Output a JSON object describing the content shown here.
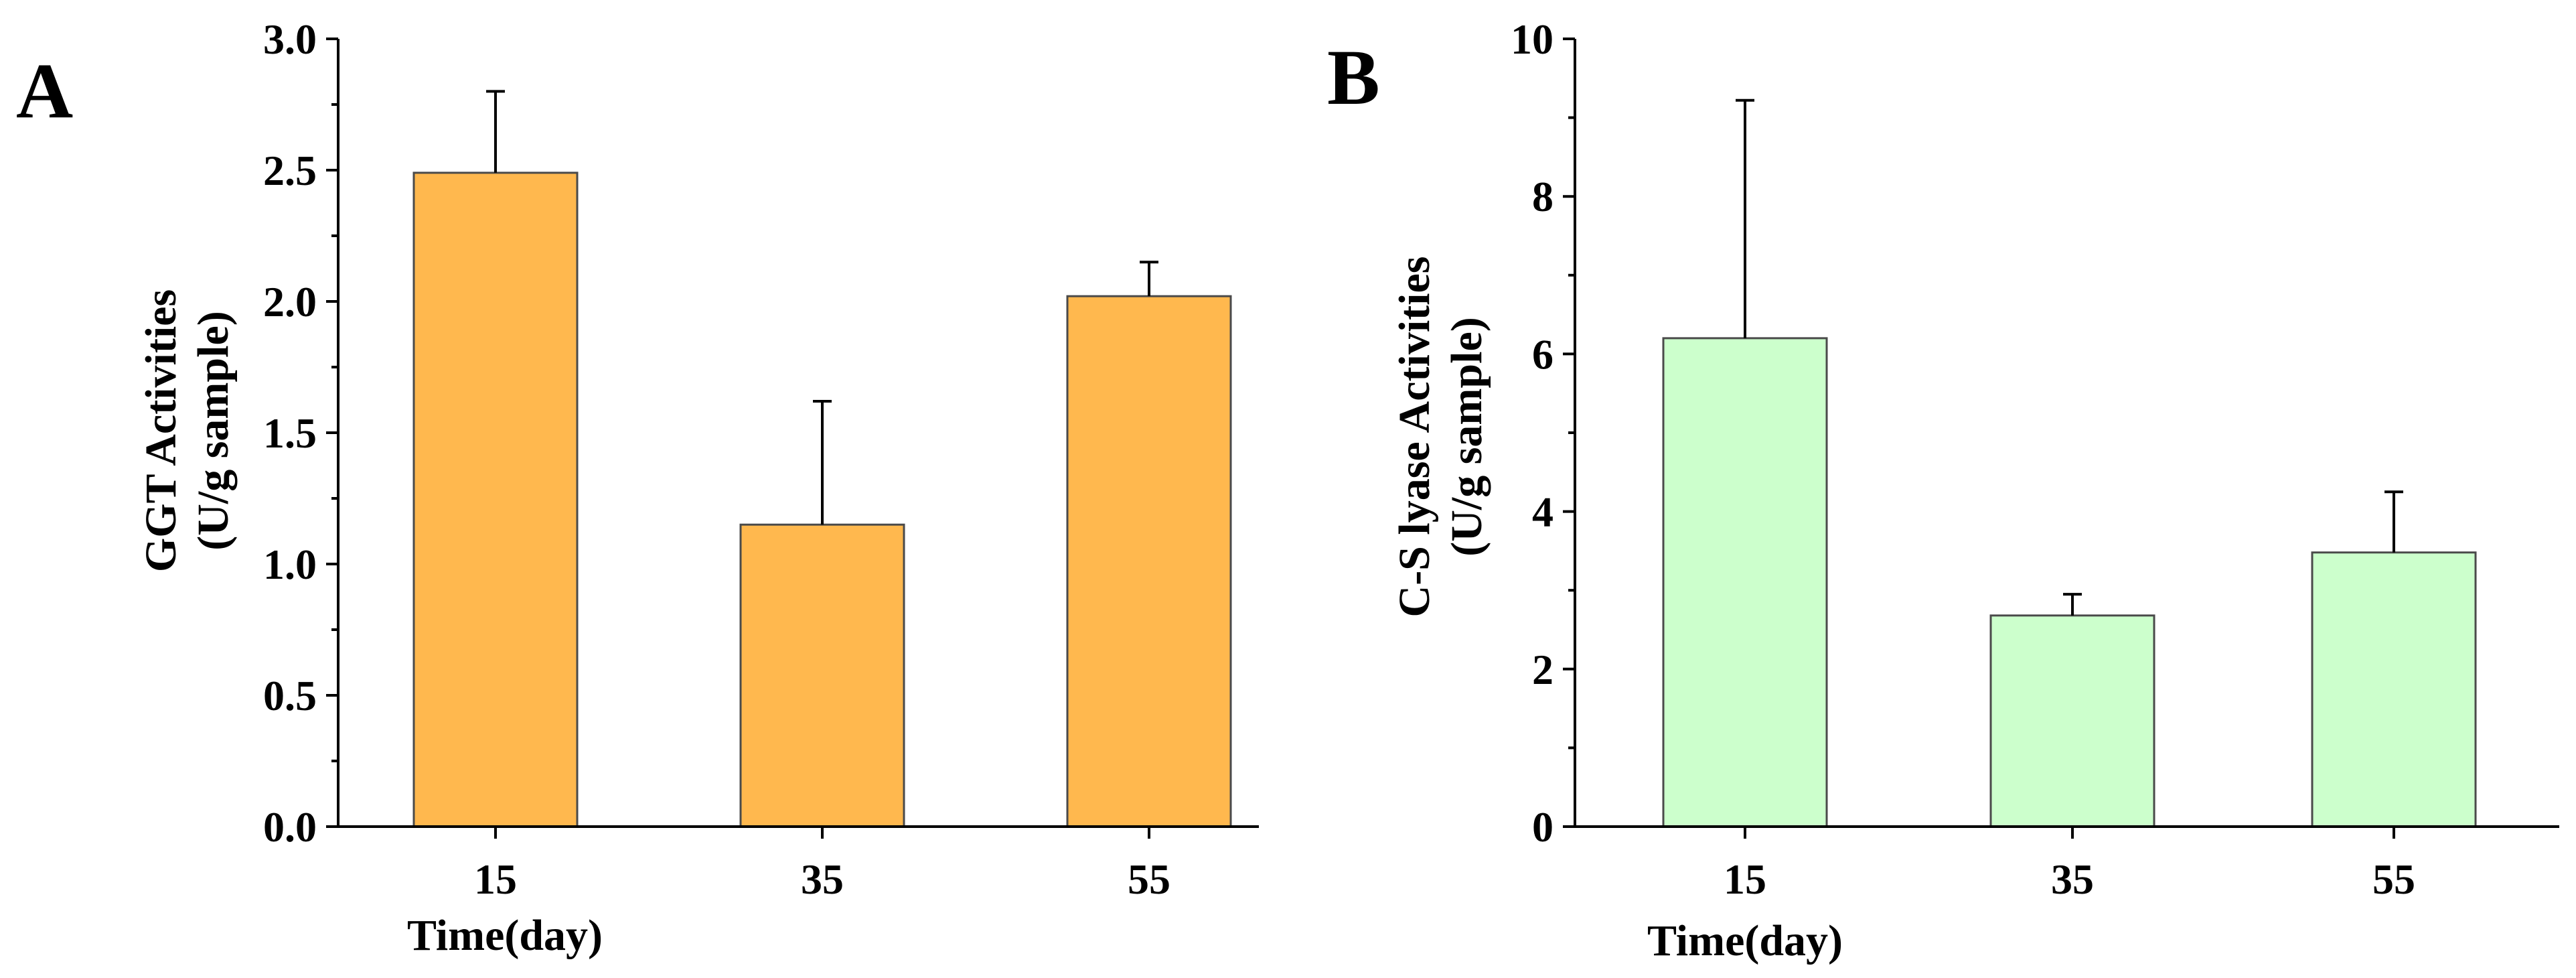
{
  "chart_data": [
    {
      "panel_label": "A",
      "type": "bar",
      "categories": [
        "15",
        "35",
        "55"
      ],
      "values": [
        2.49,
        1.15,
        2.02
      ],
      "errors": [
        0.31,
        0.47,
        0.13
      ],
      "ylabel_line1": "GGT Activities",
      "ylabel_line2": "(U/g sample)",
      "xlabel": "Time(day)",
      "ylim": [
        0,
        3.0
      ],
      "yticks": [
        "0.0",
        "0.5",
        "1.0",
        "1.5",
        "2.0",
        "2.5",
        "3.0"
      ],
      "bar_color": "#FFB84E",
      "grid": false
    },
    {
      "panel_label": "B",
      "type": "bar",
      "categories": [
        "15",
        "35",
        "55"
      ],
      "values": [
        6.2,
        2.68,
        3.48
      ],
      "errors": [
        3.02,
        0.27,
        0.77
      ],
      "ylabel_line1": "C-S lyase Activities",
      "ylabel_line2": "(U/g sample)",
      "xlabel": "Time(day)",
      "ylim": [
        0,
        10
      ],
      "yticks": [
        "0",
        "2",
        "4",
        "6",
        "8",
        "10"
      ],
      "bar_color": "#CCFFCC",
      "grid": false
    }
  ]
}
